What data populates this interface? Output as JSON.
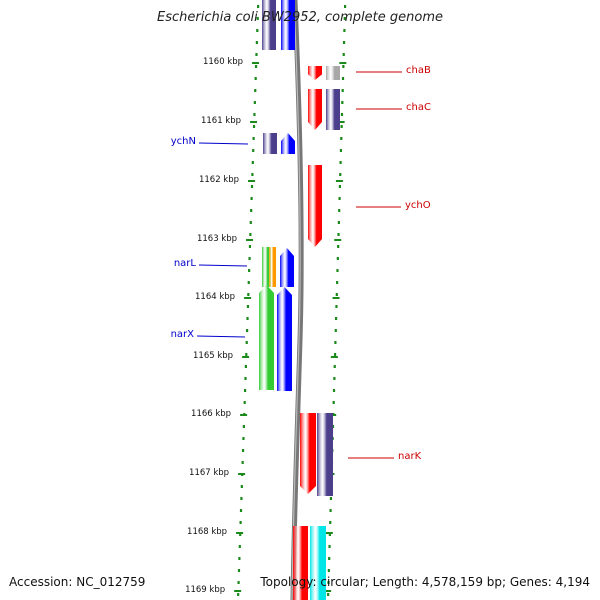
{
  "title": "Escherichia coli BW2952, complete genome",
  "footer": {
    "accession": "Accession: NC_012759",
    "summary": "Topology: circular; Length: 4,578,159 bp; Genes: 4,194"
  },
  "colors": {
    "red": "#ff0000",
    "navy": "#4b3f8c",
    "blue": "#0000ff",
    "green": "#33cc33",
    "orange": "#ff9900",
    "gray": "#a8a8a8",
    "cyan": "#00e6e6",
    "tick": "#1a8a1a",
    "backbone": "#777777"
  },
  "axis": {
    "ticks": [
      {
        "kbp": 1160,
        "label": "1160 kbp"
      },
      {
        "kbp": 1161,
        "label": "1161 kbp"
      },
      {
        "kbp": 1162,
        "label": "1162 kbp"
      },
      {
        "kbp": 1163,
        "label": "1163 kbp"
      },
      {
        "kbp": 1164,
        "label": "1164 kbp"
      },
      {
        "kbp": 1165,
        "label": "1165 kbp"
      },
      {
        "kbp": 1166,
        "label": "1166 kbp"
      },
      {
        "kbp": 1167,
        "label": "1167 kbp"
      },
      {
        "kbp": 1168,
        "label": "1168 kbp"
      },
      {
        "kbp": 1169,
        "label": "1169 kbp"
      }
    ]
  },
  "labels": [
    {
      "name": "chaB",
      "side": "right",
      "color": "#cc0000"
    },
    {
      "name": "chaC",
      "side": "right",
      "color": "#cc0000"
    },
    {
      "name": "ychO",
      "side": "right",
      "color": "#cc0000"
    },
    {
      "name": "narK",
      "side": "right",
      "color": "#cc0000"
    },
    {
      "name": "ychN",
      "side": "left",
      "color": "#0000cc"
    },
    {
      "name": "narL",
      "side": "left",
      "color": "#0000cc"
    },
    {
      "name": "narX",
      "side": "left",
      "color": "#0000cc"
    }
  ]
}
